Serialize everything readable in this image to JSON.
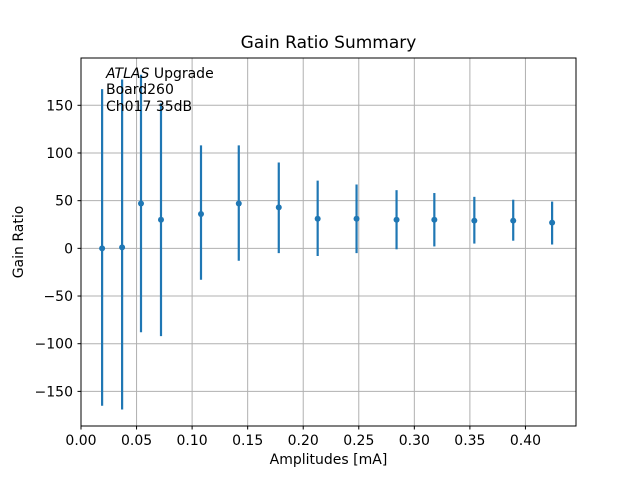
{
  "chart_data": {
    "type": "scatter",
    "subtype": "errorbar",
    "title": "Gain Ratio Summary",
    "xlabel": "Amplitudes [mA]",
    "ylabel": "Gain Ratio",
    "annotation": {
      "line1_italic": "ATLAS",
      "line1_rest": " Upgrade",
      "line2": "Board260",
      "line3": "Ch017 35dB"
    },
    "x": [
      0.019,
      0.037,
      0.054,
      0.072,
      0.108,
      0.142,
      0.178,
      0.213,
      0.248,
      0.284,
      0.318,
      0.354,
      0.389,
      0.424
    ],
    "y": [
      0,
      1,
      47,
      30,
      36,
      47,
      43,
      31,
      31,
      30,
      30,
      29,
      29,
      27
    ],
    "y_err_low": [
      -165,
      -169,
      -88,
      -92,
      -33,
      -13,
      -5,
      -8,
      -5,
      -1,
      2,
      5,
      8,
      4
    ],
    "y_err_high": [
      167,
      177,
      182,
      152,
      108,
      108,
      90,
      71,
      67,
      61,
      58,
      54,
      51,
      49
    ],
    "xlim": [
      0,
      0.4455
    ],
    "ylim": [
      -186.3,
      199.6
    ],
    "xticks": [
      0.0,
      0.05,
      0.1,
      0.15,
      0.2,
      0.25,
      0.3,
      0.35,
      0.4
    ],
    "xtick_labels": [
      "0.00",
      "0.05",
      "0.10",
      "0.15",
      "0.20",
      "0.25",
      "0.30",
      "0.35",
      "0.40"
    ],
    "yticks": [
      -150,
      -100,
      -50,
      0,
      50,
      100,
      150
    ],
    "ytick_labels": [
      "−150",
      "−100",
      "−50",
      "0",
      "50",
      "100",
      "150"
    ],
    "grid": true,
    "legend": null,
    "colors": {
      "series": "#1f77b4",
      "grid": "#b0b0b0",
      "spine": "#000000",
      "text": "#000000",
      "background": "#ffffff"
    }
  }
}
